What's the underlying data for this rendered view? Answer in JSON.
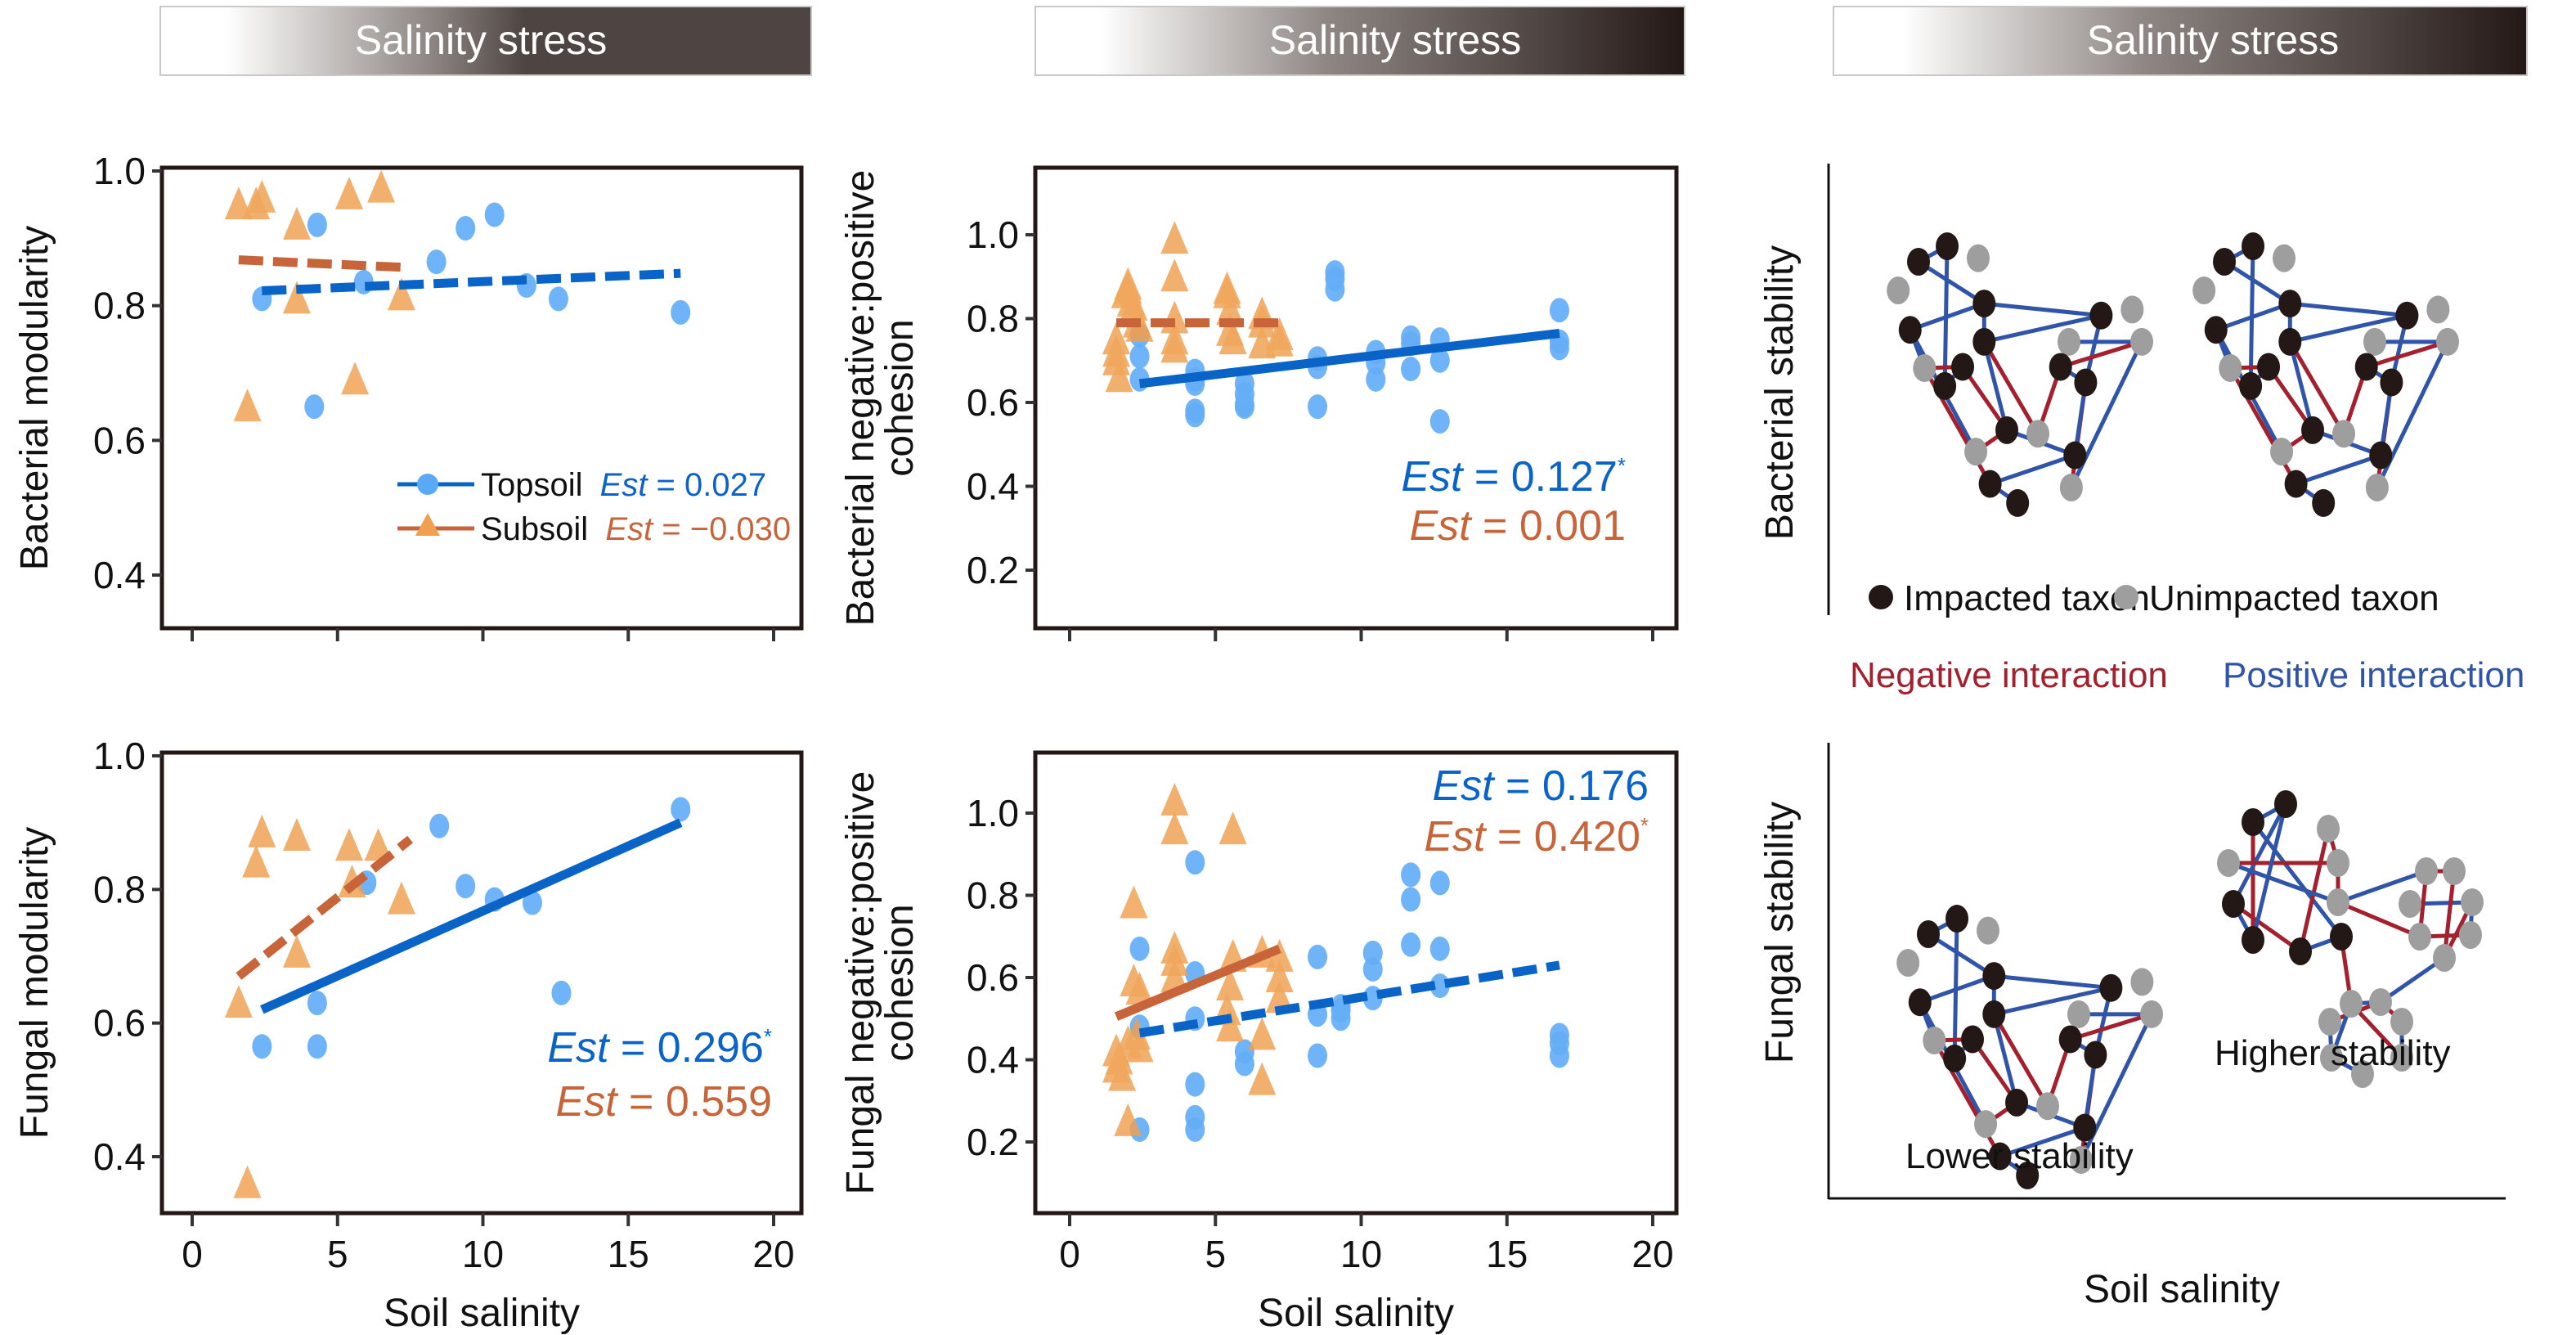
{
  "figure": {
    "header_label": "Salinity stress",
    "x_axis_title": "Soil salinity"
  },
  "colors": {
    "topsoil_marker": "#5aa9f7",
    "topsoil_line": "#0a64c8",
    "subsoil_marker": "#f0a050",
    "subsoil_line": "#c8643a",
    "impacted_node": "#231815",
    "unimpacted_node": "#9e9e9e",
    "negative_edge": "#a3212e",
    "positive_edge": "#3054a8",
    "header_dark": "#4e4542",
    "header_darker": "#231815"
  },
  "legend": {
    "topsoil": {
      "label": "Topsoil",
      "est_prefix": "Est",
      "est_value": " = 0.027"
    },
    "subsoil": {
      "label": "Subsoil",
      "est_prefix": "Est",
      "est_value": " = −0.030"
    }
  },
  "chart_data": [
    {
      "id": "bacterial-modularity",
      "type": "scatter",
      "title": "",
      "xlabel": "",
      "ylabel": "Bacterial modularity",
      "xlim": [
        -1,
        21
      ],
      "ylim": [
        0.32,
        1.0
      ],
      "xticks": [
        0,
        5,
        10,
        15,
        20
      ],
      "xtick_labels_shown": false,
      "yticks": [
        0.4,
        0.6,
        0.8,
        1.0
      ],
      "ytick_labels": [
        "0.4",
        "0.6",
        "0.8",
        "1.0"
      ],
      "legend_position": "bottom-right",
      "series": [
        {
          "name": "Topsoil",
          "marker": "circle",
          "x": [
            2.4,
            4.3,
            4.2,
            5.9,
            8.4,
            9.4,
            10.4,
            11.5,
            12.6,
            16.8
          ],
          "y": [
            0.81,
            0.92,
            0.65,
            0.835,
            0.865,
            0.915,
            0.935,
            0.83,
            0.81,
            0.79
          ],
          "fit": {
            "x": [
              2.4,
              16.8
            ],
            "y": [
              0.822,
              0.848
            ],
            "style": "dashed"
          },
          "est": "0.027",
          "significant": false
        },
        {
          "name": "Subsoil",
          "marker": "triangle",
          "x": [
            1.6,
            2.2,
            2.4,
            1.9,
            3.6,
            3.6,
            5.4,
            6.5,
            5.6,
            7.2
          ],
          "y": [
            0.95,
            0.95,
            0.96,
            0.65,
            0.92,
            0.81,
            0.965,
            0.975,
            0.69,
            0.815
          ],
          "fit": {
            "x": [
              1.6,
              7.2
            ],
            "y": [
              0.868,
              0.857
            ],
            "style": "dashed"
          },
          "est": "−0.030",
          "significant": false
        }
      ],
      "annotations": []
    },
    {
      "id": "bacterial-cohesion",
      "type": "scatter",
      "title": "",
      "xlabel": "",
      "ylabel": "Bacterial negative:positive cohesion",
      "xlim": [
        -1,
        21
      ],
      "ylim": [
        0.05,
        1.15
      ],
      "xticks": [
        0,
        5,
        10,
        15,
        20
      ],
      "xtick_labels_shown": false,
      "yticks": [
        0.2,
        0.4,
        0.6,
        0.8,
        1.0
      ],
      "ytick_labels": [
        "0.2",
        "0.4",
        "0.6",
        "0.8",
        "1.0"
      ],
      "series": [
        {
          "name": "Topsoil",
          "marker": "circle",
          "x": [
            2.4,
            2.4,
            2.4,
            4.3,
            4.3,
            4.3,
            4.3,
            4.3,
            6.0,
            6.0,
            6.0,
            6.0,
            8.5,
            8.5,
            8.5,
            9.1,
            9.1,
            9.1,
            10.5,
            10.5,
            10.5,
            11.7,
            11.7,
            11.7,
            12.7,
            12.7,
            12.7,
            16.8,
            16.8,
            16.8
          ],
          "y": [
            0.76,
            0.71,
            0.655,
            0.675,
            0.655,
            0.645,
            0.58,
            0.57,
            0.645,
            0.62,
            0.595,
            0.59,
            0.705,
            0.685,
            0.59,
            0.91,
            0.895,
            0.87,
            0.72,
            0.695,
            0.655,
            0.755,
            0.74,
            0.68,
            0.75,
            0.7,
            0.555,
            0.82,
            0.745,
            0.73
          ],
          "fit": {
            "x": [
              2.4,
              16.8
            ],
            "y": [
              0.645,
              0.765
            ],
            "style": "solid"
          },
          "est": "0.127",
          "significant": true
        },
        {
          "name": "Subsoil",
          "marker": "triangle",
          "x": [
            1.6,
            1.6,
            1.6,
            1.7,
            1.9,
            2.0,
            2.1,
            2.2,
            2.3,
            2.4,
            2.0,
            3.6,
            3.6,
            3.6,
            3.6,
            3.6,
            5.4,
            5.4,
            5.5,
            5.5,
            5.6,
            6.6,
            6.6,
            6.6,
            7.2,
            7.2
          ],
          "y": [
            0.75,
            0.72,
            0.7,
            0.66,
            0.86,
            0.87,
            0.84,
            0.83,
            0.79,
            0.78,
            0.88,
            0.99,
            0.9,
            0.8,
            0.75,
            0.73,
            0.87,
            0.86,
            0.82,
            0.77,
            0.75,
            0.81,
            0.79,
            0.74,
            0.76,
            0.745
          ],
          "fit": {
            "x": [
              1.6,
              7.2
            ],
            "y": [
              0.79,
              0.79
            ],
            "style": "dashed"
          },
          "est": "0.001",
          "significant": false
        }
      ],
      "annotations": [
        {
          "prefix": "Est",
          "text": " = 0.127",
          "star": "*",
          "series": "Topsoil"
        },
        {
          "prefix": "Est",
          "text": " = 0.001",
          "star": "",
          "series": "Subsoil"
        }
      ]
    },
    {
      "id": "fungal-modularity",
      "type": "scatter",
      "title": "",
      "xlabel": "Soil salinity",
      "ylabel": "Fungal modularity",
      "xlim": [
        -1,
        21
      ],
      "ylim": [
        0.32,
        1.0
      ],
      "xticks": [
        0,
        5,
        10,
        15,
        20
      ],
      "xtick_labels": [
        "0",
        "5",
        "10",
        "15",
        "20"
      ],
      "xtick_labels_shown": true,
      "yticks": [
        0.4,
        0.6,
        0.8,
        1.0
      ],
      "ytick_labels": [
        "0.4",
        "0.6",
        "0.8",
        "1.0"
      ],
      "series": [
        {
          "name": "Topsoil",
          "marker": "circle",
          "x": [
            2.4,
            4.3,
            4.3,
            6.0,
            8.5,
            9.4,
            10.4,
            11.7,
            12.7,
            16.8
          ],
          "y": [
            0.565,
            0.565,
            0.63,
            0.81,
            0.895,
            0.805,
            0.785,
            0.78,
            0.645,
            0.92
          ],
          "fit": {
            "x": [
              2.4,
              16.8
            ],
            "y": [
              0.62,
              0.9
            ],
            "style": "solid"
          },
          "est": "0.296",
          "significant": true
        },
        {
          "name": "Subsoil",
          "marker": "triangle",
          "x": [
            1.6,
            1.9,
            2.2,
            2.4,
            3.6,
            3.6,
            5.4,
            5.5,
            6.4,
            7.2
          ],
          "y": [
            0.63,
            0.36,
            0.84,
            0.885,
            0.88,
            0.705,
            0.865,
            0.81,
            0.865,
            0.785
          ],
          "fit": {
            "x": [
              1.6,
              7.5
            ],
            "y": [
              0.67,
              0.875
            ],
            "style": "dashed"
          },
          "est": "0.559",
          "significant": false
        }
      ],
      "annotations": [
        {
          "prefix": "Est",
          "text": " = 0.296",
          "star": "*",
          "series": "Topsoil"
        },
        {
          "prefix": "Est",
          "text": " = 0.559",
          "star": "",
          "series": "Subsoil"
        }
      ]
    },
    {
      "id": "fungal-cohesion",
      "type": "scatter",
      "title": "",
      "xlabel": "Soil salinity",
      "ylabel": "Fungal negative:positive cohesion",
      "xlim": [
        -1,
        21
      ],
      "ylim": [
        0.03,
        1.15
      ],
      "xticks": [
        0,
        5,
        10,
        15,
        20
      ],
      "xtick_labels": [
        "0",
        "5",
        "10",
        "15",
        "20"
      ],
      "xtick_labels_shown": true,
      "yticks": [
        0.2,
        0.4,
        0.6,
        0.8,
        1.0
      ],
      "ytick_labels": [
        "0.2",
        "0.4",
        "0.6",
        "0.8",
        "1.0"
      ],
      "series": [
        {
          "name": "Topsoil",
          "marker": "circle",
          "x": [
            2.4,
            2.4,
            2.4,
            4.3,
            4.3,
            4.3,
            4.3,
            4.3,
            4.3,
            6.0,
            6.0,
            8.5,
            8.5,
            8.5,
            9.3,
            9.3,
            9.3,
            10.4,
            10.4,
            10.4,
            11.7,
            11.7,
            11.7,
            12.7,
            12.7,
            12.7,
            16.8,
            16.8,
            16.8
          ],
          "y": [
            0.67,
            0.48,
            0.23,
            0.88,
            0.61,
            0.5,
            0.34,
            0.26,
            0.23,
            0.42,
            0.39,
            0.65,
            0.51,
            0.41,
            0.53,
            0.52,
            0.5,
            0.66,
            0.62,
            0.55,
            0.85,
            0.79,
            0.68,
            0.83,
            0.67,
            0.58,
            0.46,
            0.44,
            0.41
          ],
          "fit": {
            "x": [
              2.4,
              16.8
            ],
            "y": [
              0.465,
              0.63
            ],
            "style": "dashed"
          },
          "est": "0.176",
          "significant": false
        },
        {
          "name": "Subsoil",
          "marker": "triangle",
          "x": [
            1.6,
            1.6,
            1.7,
            1.8,
            2.0,
            2.2,
            2.2,
            2.3,
            2.4,
            2.4,
            2.0,
            3.6,
            3.6,
            3.6,
            3.6,
            3.6,
            5.4,
            5.5,
            5.5,
            5.6,
            5.6,
            6.6,
            6.6,
            6.6,
            7.2,
            7.2,
            7.2
          ],
          "y": [
            0.42,
            0.38,
            0.4,
            0.36,
            0.44,
            0.78,
            0.59,
            0.46,
            0.57,
            0.43,
            0.25,
            1.03,
            0.96,
            0.67,
            0.64,
            0.6,
            0.52,
            0.58,
            0.48,
            0.96,
            0.65,
            0.66,
            0.46,
            0.35,
            0.65,
            0.6,
            0.55
          ],
          "fit": {
            "x": [
              1.6,
              7.2
            ],
            "y": [
              0.505,
              0.67
            ],
            "style": "solid"
          },
          "est": "0.420",
          "significant": true
        }
      ],
      "annotations": [
        {
          "prefix": "Est",
          "text": " = 0.176",
          "star": "",
          "series": "Topsoil"
        },
        {
          "prefix": "Est",
          "text": " = 0.420",
          "star": "*",
          "series": "Subsoil"
        }
      ]
    }
  ],
  "diagram": {
    "top_ylabel": "Bacterial stability",
    "bottom_ylabel": "Fungal stability",
    "xlabel": "Soil salinity",
    "legend_impacted": "Impacted taxon",
    "legend_unimpacted": "Unimpacted taxon",
    "legend_negative": "Negative interaction",
    "legend_positive": "Positive interaction",
    "lower_label": "Lower stability",
    "higher_label": "Higher stability"
  }
}
